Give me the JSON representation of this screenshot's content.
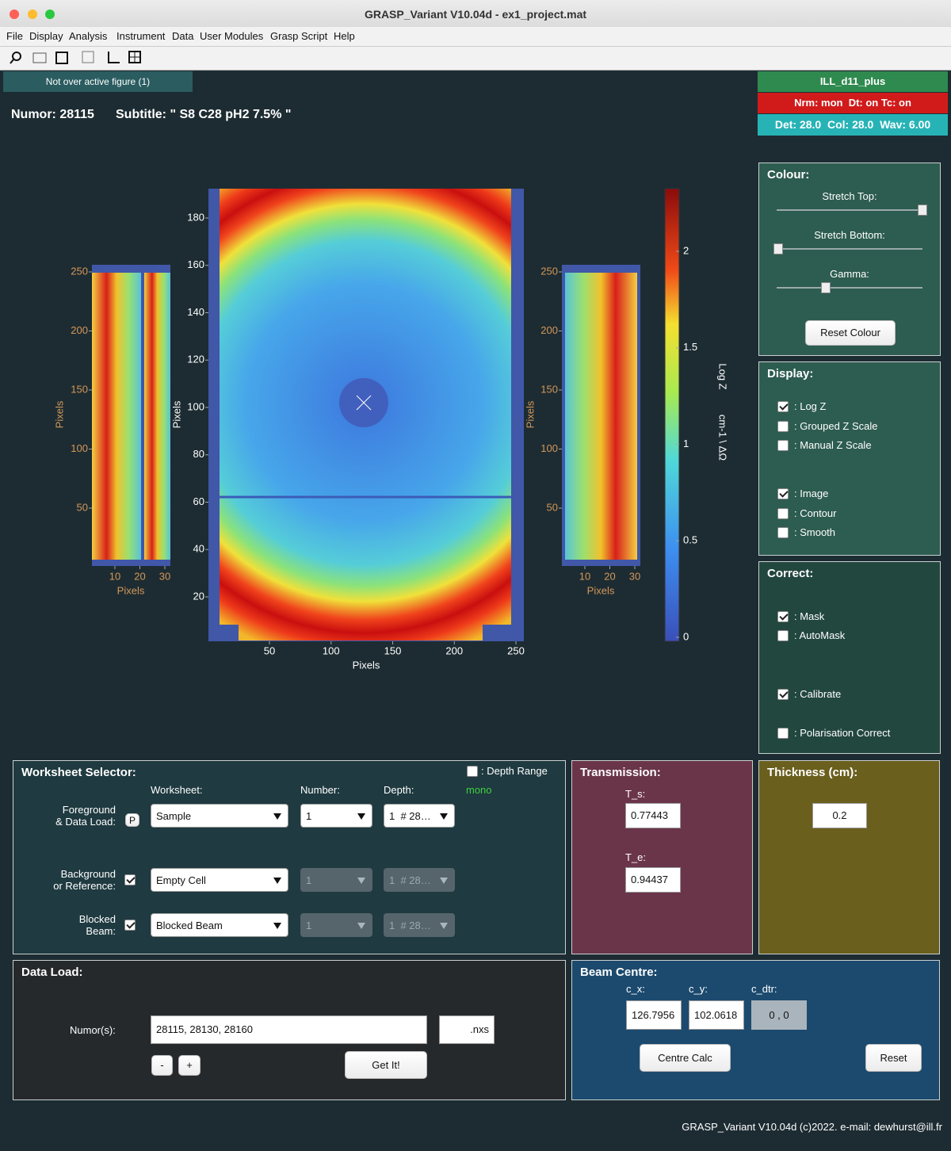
{
  "window": {
    "title": "GRASP_Variant V10.04d - ex1_project.mat"
  },
  "menu": [
    "File",
    "Display",
    "Analysis",
    "Instrument",
    "Data",
    "User Modules",
    "Grasp Script",
    "Help"
  ],
  "status": "Not over active figure (1)",
  "instrument": {
    "name": "ILL_d11_plus",
    "flags": "Nrm: mon  Dt: on Tc: on",
    "settings": "Det: 28.0  Col: 28.0  Wav: 6.00"
  },
  "header": {
    "numor": "Numor: 28115",
    "subtitle": "Subtitle: \" S8 C28 pH2 7.5% \""
  },
  "plots": {
    "main": {
      "xticks": [
        50,
        100,
        150,
        200,
        250
      ],
      "yticks": [
        20,
        40,
        60,
        80,
        100,
        120,
        140,
        160,
        180
      ],
      "xlabel": "Pixels",
      "ylabel": "Pixels"
    },
    "left": {
      "xticks": [
        10,
        20,
        30
      ],
      "yticks": [
        50,
        100,
        150,
        200,
        250
      ],
      "xlabel": "Pixels",
      "ylabel": "Pixels"
    },
    "right": {
      "xticks": [
        10,
        20,
        30
      ],
      "yticks": [
        50,
        100,
        150,
        200,
        250
      ],
      "xlabel": "Pixels",
      "ylabel": "Pixels"
    },
    "colorbar": {
      "ticks": [
        0,
        0.5,
        1,
        1.5,
        2
      ],
      "label": "Log Z",
      "units": "cm-1 \\ ΔΩ"
    }
  },
  "colour": {
    "title": "Colour:",
    "stretch_top": "Stretch Top:",
    "stretch_bottom": "Stretch Bottom:",
    "gamma": "Gamma:",
    "reset": "Reset Colour"
  },
  "display": {
    "title": "Display:",
    "options": [
      {
        "label": ": Log Z",
        "checked": true
      },
      {
        "label": ": Grouped Z Scale",
        "checked": false
      },
      {
        "label": ": Manual Z Scale",
        "checked": false
      },
      {
        "label": ": Image",
        "checked": true
      },
      {
        "label": ": Contour",
        "checked": false
      },
      {
        "label": ": Smooth",
        "checked": false
      }
    ]
  },
  "correct": {
    "title": "Correct:",
    "options": [
      {
        "label": ": Mask",
        "checked": true
      },
      {
        "label": ": AutoMask",
        "checked": false
      },
      {
        "label": ": Calibrate",
        "checked": true
      },
      {
        "label": ": Polarisation Correct",
        "checked": false
      }
    ]
  },
  "worksheet": {
    "title": "Worksheet Selector:",
    "depth_range": ": Depth Range",
    "depth_range_checked": false,
    "col_worksheet": "Worksheet:",
    "col_number": "Number:",
    "col_depth": "Depth:",
    "mono": "mono",
    "rows": [
      {
        "label": [
          "Foreground",
          "& Data Load:"
        ],
        "button": "P",
        "worksheet": "Sample",
        "number": "1",
        "depth": "1  # 28…"
      },
      {
        "label": [
          "Background",
          "or Reference:"
        ],
        "checked": true,
        "worksheet": "Empty Cell",
        "number": "1",
        "depth": "1  # 28…"
      },
      {
        "label": [
          "Blocked",
          "Beam:"
        ],
        "checked": true,
        "worksheet": "Blocked Beam",
        "number": "1",
        "depth": "1  # 28…"
      }
    ]
  },
  "transmission": {
    "title": "Transmission:",
    "ts_label": "T_s:",
    "ts": "0.77443",
    "te_label": "T_e:",
    "te": "0.94437"
  },
  "thickness": {
    "title": "Thickness (cm):",
    "value": "0.2"
  },
  "data_load": {
    "title": "Data Load:",
    "label": "Numor(s):",
    "numors": "28115, 28130, 28160",
    "ext": ".nxs",
    "minus": "-",
    "plus": "+",
    "get": "Get It!"
  },
  "beam_centre": {
    "title": "Beam Centre:",
    "cx_label": "c_x:",
    "cy_label": "c_y:",
    "cdtr_label": "c_dtr:",
    "cx": "126.7956",
    "cy": "102.0618",
    "cdtr": "0 , 0",
    "calc": "Centre Calc",
    "reset": "Reset"
  },
  "footer": "GRASP_Variant V10.04d (c)2022.  e-mail: dewhurst@ill.fr"
}
